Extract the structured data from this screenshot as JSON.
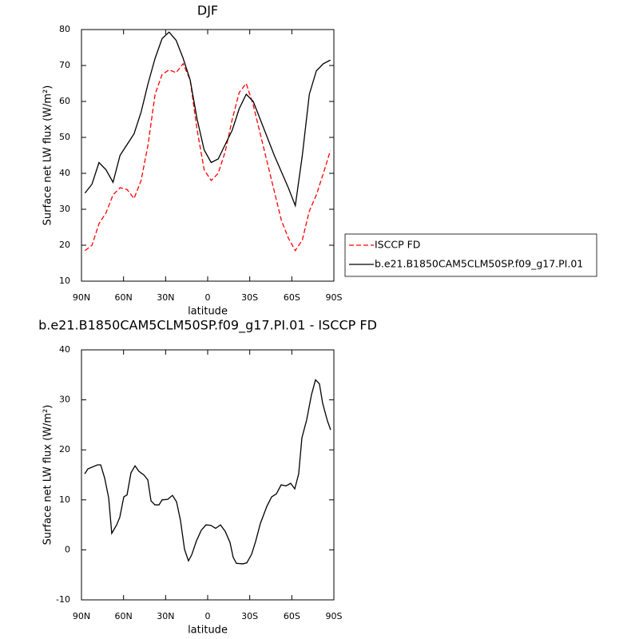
{
  "chart_data": [
    {
      "type": "line",
      "title": "DJF",
      "xlabel": "latitude",
      "ylabel": "Surface net LW flux (W/m²)",
      "x": [
        87.5,
        82.5,
        77.5,
        72.5,
        67.5,
        62.5,
        57.5,
        52.5,
        47.5,
        42.5,
        37.5,
        32.5,
        27.5,
        22.5,
        17.5,
        12.5,
        7.5,
        2.5,
        -2.5,
        -7.5,
        -12.5,
        -17.5,
        -22.5,
        -27.5,
        -32.5,
        -37.5,
        -42.5,
        -47.5,
        -52.5,
        -57.5,
        -62.5,
        -67.5,
        -72.5,
        -77.5,
        -82.5,
        -87.5
      ],
      "series": [
        {
          "name": "ISCCP FD",
          "color": "#ff0000",
          "dashed": true,
          "values": [
            18.5,
            20,
            26,
            29,
            34,
            36,
            35.5,
            33,
            38,
            48,
            62,
            67.5,
            68.8,
            68,
            70.5,
            66,
            52,
            41,
            38,
            40,
            46,
            55,
            62.5,
            65,
            59,
            51,
            43,
            35,
            27,
            22,
            18.5,
            21.5,
            29.5,
            34,
            40,
            46.3
          ]
        },
        {
          "name": "b.e21.B1850CAM5CLM50SP.f09_g17.PI.01",
          "color": "#000000",
          "dashed": false,
          "values": [
            34.5,
            37,
            43,
            41,
            37.5,
            45,
            48,
            51,
            57,
            65,
            72,
            77.5,
            79.3,
            77,
            72,
            66,
            55,
            46.5,
            43,
            44,
            48,
            52,
            58,
            62,
            60,
            55,
            50,
            45,
            40.5,
            36,
            31,
            45,
            62,
            68.5,
            70.5,
            71.5
          ]
        }
      ],
      "xlim": [
        90,
        -90
      ],
      "xticks": [
        {
          "value": 90,
          "label": "90N"
        },
        {
          "value": 60,
          "label": "60N"
        },
        {
          "value": 30,
          "label": "30N"
        },
        0,
        {
          "value": -30,
          "label": "30S"
        },
        {
          "value": -60,
          "label": "60S"
        },
        {
          "value": -90,
          "label": "90S"
        }
      ],
      "ylim": [
        10,
        80
      ],
      "yticks": [
        10,
        20,
        30,
        40,
        50,
        60,
        70,
        80
      ],
      "legend": "right"
    },
    {
      "type": "line",
      "title": "b.e21.B1850CAM5CLM50SP.f09_g17.PI.01 - ISCCP FD",
      "xlabel": "latitude",
      "ylabel": "Surface net LW flux (W/m²)",
      "x": [
        87.7,
        85.4,
        78.6,
        76.3,
        73.5,
        70.6,
        68.4,
        64.9,
        62.7,
        59.8,
        57.5,
        54.7,
        51.8,
        49,
        45.6,
        42.7,
        40.4,
        37.6,
        34.7,
        32.5,
        28.5,
        25.1,
        22.2,
        19.4,
        16.5,
        13.7,
        11.4,
        8,
        4.6,
        1.2,
        -2.2,
        -5.7,
        -9.1,
        -12.5,
        -15.9,
        -18.2,
        -20.5,
        -25.1,
        -27.9,
        -31.3,
        -34.2,
        -37.6,
        -42.2,
        -45.6,
        -49,
        -52.4,
        -55.8,
        -59.2,
        -62.1,
        -64.9,
        -67.2,
        -70.6,
        -74,
        -76.9,
        -79.7,
        -82,
        -85.4,
        -87.7
      ],
      "series": [
        {
          "color": "#000000",
          "dashed": false,
          "values": [
            15.2,
            16.2,
            17,
            17,
            14.4,
            10.4,
            3.3,
            5,
            6.5,
            10.6,
            11,
            15.4,
            16.8,
            15.7,
            15,
            14,
            9.8,
            9,
            9,
            10,
            10.1,
            10.9,
            9.6,
            5.9,
            0.1,
            -2.2,
            -1,
            1.8,
            3.9,
            5,
            4.9,
            4.3,
            5,
            3.7,
            1.5,
            -1.5,
            -2.7,
            -2.8,
            -2.6,
            -0.9,
            1.7,
            5.3,
            8.7,
            10.6,
            11.2,
            13,
            12.8,
            13.3,
            12.2,
            15.2,
            22.4,
            26,
            31,
            34,
            33.2,
            29.3,
            25.8,
            24
          ]
        }
      ],
      "xlim": [
        90,
        -90
      ],
      "xticks": [
        {
          "value": 90,
          "label": "90N"
        },
        {
          "value": 60,
          "label": "60N"
        },
        {
          "value": 30,
          "label": "30N"
        },
        0,
        {
          "value": -30,
          "label": "30S"
        },
        {
          "value": -60,
          "label": "60S"
        },
        {
          "value": -90,
          "label": "90S"
        }
      ],
      "ylim": [
        -10,
        40
      ],
      "yticks": [
        -10,
        0,
        10,
        20,
        30,
        40
      ]
    }
  ]
}
